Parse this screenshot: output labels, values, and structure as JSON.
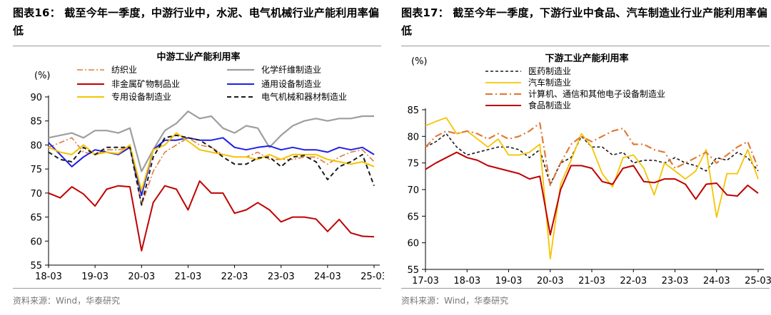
{
  "figures": [
    {
      "heading": "图表16： 截至今年一季度，中游行业中，水泥、电气机械行业产能利用率偏低",
      "source": "资料来源：Wind，华泰研究"
    },
    {
      "heading": "图表17： 截至今年一季度，下游行业中食品、汽车制造业行业产能利用率偏低",
      "source": "资料来源：Wind，华泰研究"
    }
  ],
  "chart_data": [
    {
      "type": "line",
      "title": "中游工业产能利用率",
      "ylabel": "(%)",
      "xlabel": "",
      "ylim": [
        55,
        90
      ],
      "yticks": [
        55,
        60,
        65,
        70,
        75,
        80,
        85,
        90
      ],
      "x": [
        "18-03",
        "18-06",
        "18-09",
        "18-12",
        "19-03",
        "19-06",
        "19-09",
        "19-12",
        "20-03",
        "20-06",
        "20-09",
        "20-12",
        "21-03",
        "21-06",
        "21-09",
        "21-12",
        "22-03",
        "22-06",
        "22-09",
        "22-12",
        "23-03",
        "23-06",
        "23-09",
        "23-12",
        "24-03",
        "24-06",
        "24-09",
        "24-12",
        "25-03"
      ],
      "xticks": [
        "18-03",
        "19-03",
        "20-03",
        "21-03",
        "22-03",
        "23-03",
        "24-03",
        "25-03"
      ],
      "series": [
        {
          "name": "纺织业",
          "color": "#e07b39",
          "dash": "8,3,2,3",
          "width": 1.6,
          "values": [
            79.5,
            80.5,
            81.5,
            78.5,
            78,
            79,
            79,
            79.5,
            67.5,
            74.5,
            78.5,
            80,
            81.5,
            80,
            79.5,
            78,
            77.5,
            77.5,
            78.5,
            77,
            77,
            77,
            77.5,
            77.5,
            76,
            77.5,
            78.5,
            79,
            76.5
          ]
        },
        {
          "name": "化学纤维制造业",
          "color": "#9e9e9e",
          "dash": "",
          "width": 2.2,
          "values": [
            81.5,
            82,
            82.5,
            81.5,
            83,
            83,
            82.5,
            83.5,
            74.5,
            79,
            83,
            84.5,
            87,
            85.5,
            86,
            83.5,
            82.5,
            84,
            83.5,
            79.5,
            82,
            84,
            85,
            85.5,
            85,
            85.5,
            85.5,
            86,
            86
          ]
        },
        {
          "name": "非金属矿物制品业",
          "color": "#c00000",
          "dash": "",
          "width": 2,
          "values": [
            70,
            69,
            71.3,
            69.8,
            67.3,
            70.8,
            71.5,
            71.3,
            58,
            68,
            71.5,
            70.8,
            66.5,
            72.5,
            70,
            70,
            65.8,
            66.5,
            68,
            66.5,
            64,
            65,
            65,
            64.6,
            62,
            64.5,
            61.7,
            61,
            60.9
          ]
        },
        {
          "name": "通用设备制造业",
          "color": "#1f1fe6",
          "dash": "",
          "width": 2,
          "values": [
            80.5,
            78,
            75.5,
            77.5,
            79,
            78.5,
            78,
            79.5,
            69.5,
            79,
            81,
            81,
            81.5,
            81,
            81,
            81.5,
            79.5,
            79,
            79.5,
            79.8,
            79,
            79.5,
            79,
            79,
            78.5,
            79.5,
            79,
            79.5,
            78
          ]
        },
        {
          "name": "专用设备制造业",
          "color": "#f5c400",
          "dash": "",
          "width": 2,
          "values": [
            79.5,
            78.5,
            78,
            80,
            78,
            78.5,
            78.2,
            80,
            70.5,
            79,
            80,
            82.5,
            80.8,
            79,
            78.5,
            78,
            77.5,
            77.5,
            77,
            78,
            77,
            78,
            78,
            78,
            77,
            76.5,
            76,
            76.5,
            75.5
          ]
        },
        {
          "name": "电气机械和器材制造业",
          "color": "#1a1a1a",
          "dash": "6,4",
          "width": 2,
          "values": [
            78.5,
            77,
            76.5,
            79.5,
            78,
            79.5,
            79.5,
            79.5,
            67.5,
            77.5,
            81.5,
            82,
            81.5,
            81,
            79.5,
            77.5,
            76,
            76,
            77.3,
            77.5,
            75.5,
            77.5,
            77.8,
            76.5,
            72.8,
            75.5,
            76.5,
            78,
            71.5
          ]
        }
      ]
    },
    {
      "type": "line",
      "title": "下游工业产能利用率",
      "ylabel": "(%)",
      "xlabel": "",
      "ylim": [
        55,
        85
      ],
      "yticks": [
        55,
        60,
        65,
        70,
        75,
        80,
        85
      ],
      "x": [
        "17-03",
        "17-06",
        "17-09",
        "17-12",
        "18-03",
        "18-06",
        "18-09",
        "18-12",
        "19-03",
        "19-06",
        "19-09",
        "19-12",
        "20-03",
        "20-06",
        "20-09",
        "20-12",
        "21-03",
        "21-06",
        "21-09",
        "21-12",
        "22-03",
        "22-06",
        "22-09",
        "22-12",
        "23-03",
        "23-06",
        "23-09",
        "23-12",
        "24-03",
        "24-06",
        "24-09",
        "24-12",
        "25-03"
      ],
      "xticks": [
        "17-03",
        "18-03",
        "19-03",
        "20-03",
        "21-03",
        "22-03",
        "23-03",
        "24-03",
        "25-03"
      ],
      "series": [
        {
          "name": "医药制造业",
          "color": "#1a1a1a",
          "dash": "4,3",
          "width": 1.6,
          "values": [
            78,
            79,
            80.5,
            78,
            76.5,
            77,
            77.5,
            78,
            78,
            77.5,
            76,
            77.5,
            71,
            75,
            76,
            80,
            78,
            78,
            76.5,
            77,
            75,
            75.5,
            75.5,
            75,
            76,
            75,
            74.5,
            73.5,
            76,
            75.5,
            77,
            76,
            73.5
          ]
        },
        {
          "name": "汽车制造业",
          "color": "#f5c400",
          "dash": "",
          "width": 1.8,
          "values": [
            82,
            82.8,
            83.5,
            80.5,
            81,
            79.5,
            78,
            79.5,
            76.5,
            76.5,
            77,
            78.5,
            57,
            71,
            75.5,
            80.5,
            78,
            73,
            70.5,
            76,
            76.5,
            74,
            69,
            75,
            73.5,
            72,
            73.5,
            77.5,
            64.8,
            73,
            73,
            77.5,
            72
          ]
        },
        {
          "name": "计算机、通信和其他电子设备制造业",
          "color": "#e07b39",
          "dash": "10,4,2,4",
          "width": 2.2,
          "values": [
            78,
            80,
            81,
            80.5,
            81,
            80.5,
            79.5,
            80.5,
            79.5,
            80,
            81,
            82.5,
            70.8,
            75,
            78.5,
            80,
            79,
            80,
            81,
            81.5,
            78.5,
            78.5,
            77.5,
            77,
            74,
            75,
            76,
            77,
            75,
            76.5,
            78,
            79,
            74
          ]
        },
        {
          "name": "食品制造业",
          "color": "#c00000",
          "dash": "",
          "width": 2,
          "values": [
            73.8,
            75,
            76,
            77,
            76,
            75.5,
            74.5,
            74,
            73.5,
            73,
            72,
            72.5,
            61.5,
            70,
            74.5,
            74.5,
            74,
            71.5,
            71,
            74,
            74.5,
            71.5,
            71.3,
            72,
            72,
            71,
            68.2,
            71,
            71.2,
            69,
            68.8,
            70.8,
            69.3
          ]
        }
      ]
    }
  ]
}
